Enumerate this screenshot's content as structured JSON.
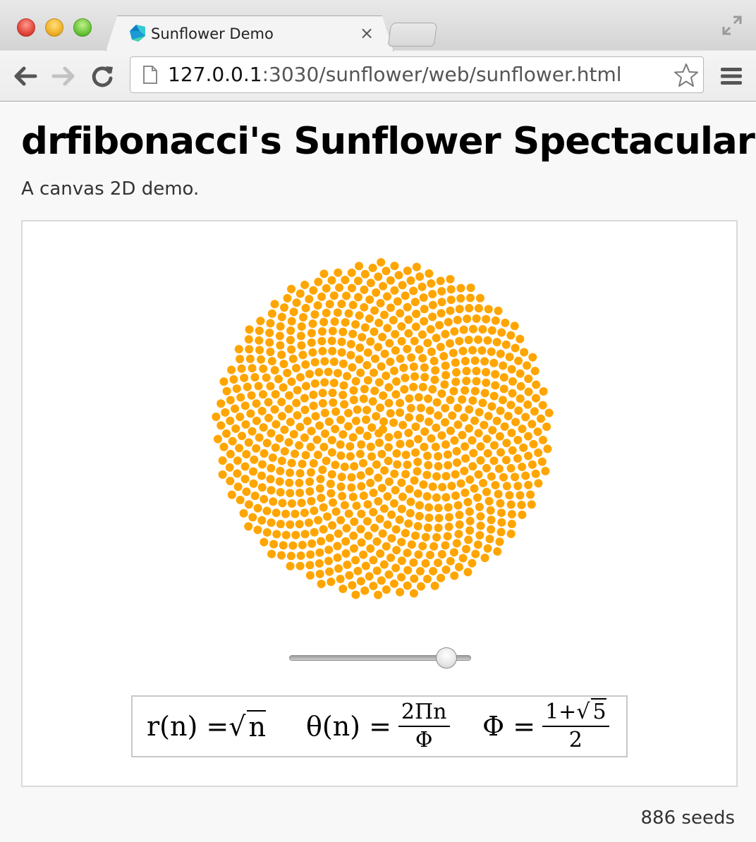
{
  "browser": {
    "tab": {
      "title": "Sunflower Demo",
      "close_glyph": "×"
    },
    "address_bar": {
      "host": "127.0.0.1",
      "rest": ":3030/sunflower/web/sunflower.html"
    },
    "icons": {
      "back": "back-arrow-icon",
      "forward": "forward-arrow-icon",
      "reload": "reload-icon",
      "page": "page-icon",
      "bookmark": "star-icon",
      "menu": "hamburger-menu-icon",
      "fullscreen": "fullscreen-icon",
      "favicon": "dart-logo-icon"
    }
  },
  "page": {
    "title": "drfibonacci's Sunflower Spectacular",
    "subtitle": "A canvas 2D demo."
  },
  "sunflower": {
    "seed_color": "#ffa500",
    "seeds": 886,
    "slider": {
      "value": 886,
      "min": 1,
      "max": 1000
    }
  },
  "formula": {
    "r_lhs": "r(n) = ",
    "r_rad": "n",
    "theta_lhs": "θ(n) = ",
    "theta_num": "2Πn",
    "theta_den": "Φ",
    "phi_lhs": "Φ = ",
    "phi_num_a": "1+",
    "phi_num_rad": "5",
    "phi_den": "2"
  },
  "status": {
    "seed_count_text": "886 seeds"
  }
}
